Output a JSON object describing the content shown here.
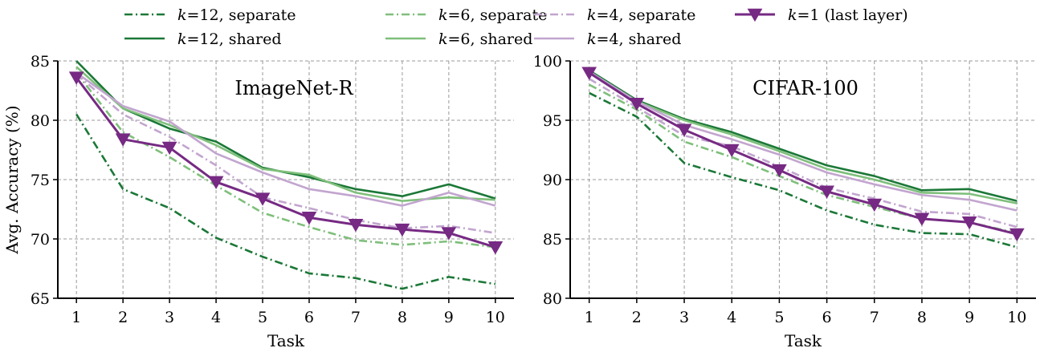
{
  "chart_data": [
    {
      "type": "line",
      "title": "ImageNet-R",
      "xlabel": "Task",
      "ylabel": "Avg. Accuracy (%)",
      "xlim": [
        0.6,
        10.4
      ],
      "ylim": [
        65,
        85
      ],
      "xticks": [
        1,
        2,
        3,
        4,
        5,
        6,
        7,
        8,
        9,
        10
      ],
      "yticks": [
        65,
        70,
        75,
        80,
        85
      ],
      "grid": true,
      "x": [
        1,
        2,
        3,
        4,
        5,
        6,
        7,
        8,
        9,
        10
      ],
      "series": [
        {
          "key": "k12_separate",
          "values": [
            80.5,
            74.2,
            72.6,
            70.1,
            68.5,
            67.1,
            66.7,
            65.8,
            66.8,
            66.2
          ]
        },
        {
          "key": "k12_shared",
          "values": [
            85.0,
            81.0,
            79.3,
            78.2,
            76.0,
            75.2,
            74.2,
            73.6,
            74.6,
            73.4
          ]
        },
        {
          "key": "k6_separate",
          "values": [
            84.0,
            79.0,
            76.9,
            74.5,
            72.2,
            71.0,
            69.9,
            69.5,
            69.8,
            69.3
          ]
        },
        {
          "key": "k6_shared",
          "values": [
            84.5,
            81.0,
            79.6,
            77.9,
            75.9,
            75.4,
            73.9,
            73.2,
            73.5,
            73.3
          ]
        },
        {
          "key": "k4_separate",
          "values": [
            83.9,
            80.5,
            78.6,
            76.2,
            73.5,
            72.6,
            71.6,
            70.9,
            71.1,
            70.5
          ]
        },
        {
          "key": "k4_shared",
          "values": [
            84.0,
            81.2,
            79.9,
            77.2,
            75.6,
            74.2,
            73.6,
            72.8,
            73.9,
            72.8
          ]
        },
        {
          "key": "k1_last",
          "values": [
            83.6,
            78.4,
            77.7,
            74.8,
            73.4,
            71.8,
            71.2,
            70.8,
            70.5,
            69.3
          ]
        }
      ]
    },
    {
      "type": "line",
      "title": "CIFAR-100",
      "xlabel": "Task",
      "ylabel": "",
      "xlim": [
        0.6,
        10.4
      ],
      "ylim": [
        80,
        100
      ],
      "xticks": [
        1,
        2,
        3,
        4,
        5,
        6,
        7,
        8,
        9,
        10
      ],
      "yticks": [
        80,
        85,
        90,
        95,
        100
      ],
      "grid": true,
      "x": [
        1,
        2,
        3,
        4,
        5,
        6,
        7,
        8,
        9,
        10
      ],
      "series": [
        {
          "key": "k12_separate",
          "values": [
            97.3,
            95.3,
            91.4,
            90.2,
            89.1,
            87.4,
            86.2,
            85.5,
            85.4,
            84.3
          ]
        },
        {
          "key": "k12_shared",
          "values": [
            99.2,
            96.7,
            95.1,
            94.0,
            92.6,
            91.2,
            90.3,
            89.1,
            89.2,
            88.2
          ]
        },
        {
          "key": "k6_separate",
          "values": [
            98.0,
            95.9,
            93.2,
            91.9,
            90.3,
            88.7,
            87.7,
            86.7,
            86.4,
            85.5
          ]
        },
        {
          "key": "k6_shared",
          "values": [
            99.0,
            96.6,
            95.0,
            93.8,
            92.4,
            90.9,
            90.0,
            88.9,
            88.8,
            88.0
          ]
        },
        {
          "key": "k4_separate",
          "values": [
            98.5,
            96.1,
            93.7,
            92.8,
            91.1,
            89.3,
            88.4,
            87.3,
            87.1,
            86.0
          ]
        },
        {
          "key": "k4_shared",
          "values": [
            99.1,
            96.6,
            94.6,
            93.4,
            92.1,
            90.6,
            89.6,
            88.7,
            88.3,
            87.4
          ]
        },
        {
          "key": "k1_last",
          "values": [
            99.0,
            96.4,
            94.2,
            92.5,
            90.8,
            89.0,
            87.9,
            86.7,
            86.4,
            85.4
          ]
        }
      ]
    }
  ],
  "legend": {
    "placement": "top",
    "items": [
      {
        "key": "k12_separate",
        "italic": "k",
        "text": "=12, separate",
        "color": "#1b7837",
        "dash": "dashdot",
        "marker": "none"
      },
      {
        "key": "k12_shared",
        "italic": "k",
        "text": "=12, shared",
        "color": "#1b7837",
        "dash": "solid",
        "marker": "none"
      },
      {
        "key": "k6_separate",
        "italic": "k",
        "text": "=6, separate",
        "color": "#7fbf7b",
        "dash": "dashdot",
        "marker": "none"
      },
      {
        "key": "k6_shared",
        "italic": "k",
        "text": "=6, shared",
        "color": "#7fbf7b",
        "dash": "solid",
        "marker": "none"
      },
      {
        "key": "k4_separate",
        "italic": "k",
        "text": "=4, separate",
        "color": "#c2a5cf",
        "dash": "dashdot",
        "marker": "none"
      },
      {
        "key": "k4_shared",
        "italic": "k",
        "text": "=4, shared",
        "color": "#c2a5cf",
        "dash": "solid",
        "marker": "none"
      },
      {
        "key": "k1_last",
        "italic": "k",
        "text": "=1 (last layer)",
        "color": "#762a83",
        "dash": "solid",
        "marker": "triangle-down"
      }
    ]
  }
}
